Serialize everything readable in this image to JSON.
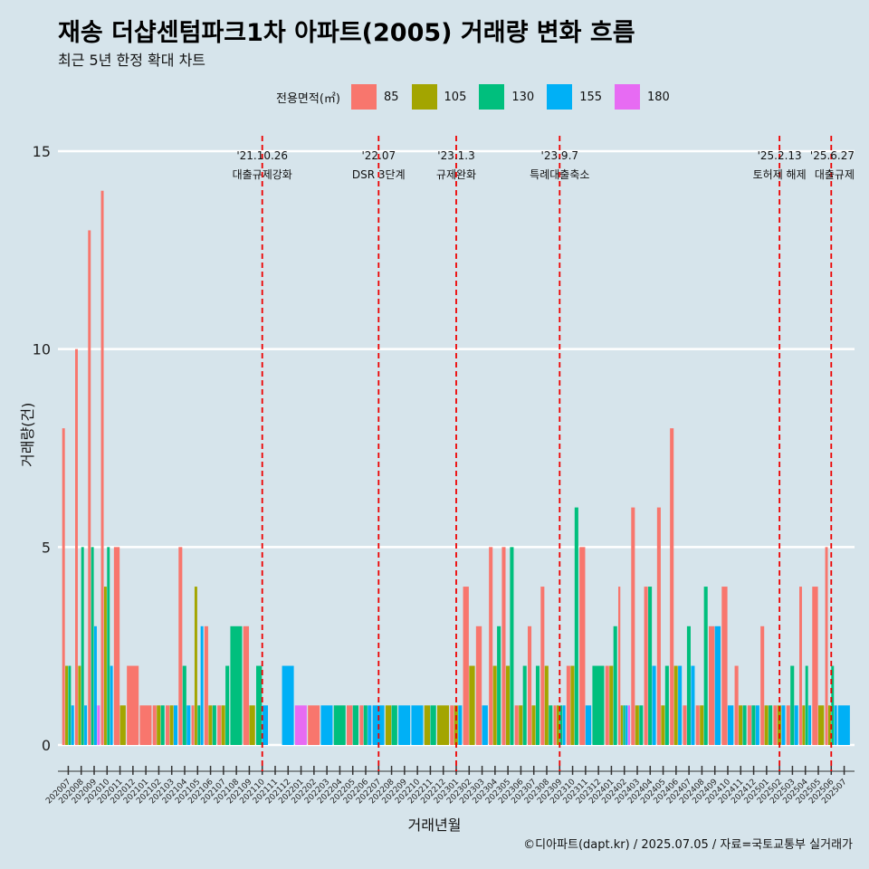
{
  "title": "재송 더샵센텀파크1차 아파트(2005) 거래량 변화 흐름",
  "subtitle": "최근 5년 한정 확대 차트",
  "legend_title": "전용면적(㎡)",
  "xlabel": "거래년월",
  "ylabel": "거래량(건)",
  "caption": "©디아파트(dapt.kr) / 2025.07.05 / 자료=국토교통부 실거래가",
  "colors": {
    "85": "#f8766d",
    "105": "#a3a500",
    "130": "#00bf7d",
    "155": "#00b0f6",
    "180": "#e76bf3",
    "background": "#d6e4eb",
    "event_line": "#ee0000"
  },
  "chart_data": {
    "type": "bar",
    "title": "재송 더샵센텀파크1차 아파트(2005) 거래량 변화 흐름",
    "subtitle": "최근 5년 한정 확대 차트",
    "xlabel": "거래년월",
    "ylabel": "거래량(건)",
    "ylim": [
      0,
      15
    ],
    "yticks": [
      0,
      5,
      10,
      15
    ],
    "grid": true,
    "legend_position": "top",
    "categories": [
      "202007",
      "202008",
      "202009",
      "202010",
      "202011",
      "202012",
      "202101",
      "202102",
      "202103",
      "202104",
      "202105",
      "202106",
      "202107",
      "202108",
      "202109",
      "202110",
      "202111",
      "202112",
      "202201",
      "202202",
      "202203",
      "202204",
      "202205",
      "202206",
      "202207",
      "202208",
      "202209",
      "202210",
      "202211",
      "202212",
      "202301",
      "202302",
      "202303",
      "202304",
      "202305",
      "202306",
      "202307",
      "202308",
      "202309",
      "202310",
      "202311",
      "202312",
      "202401",
      "202402",
      "202403",
      "202404",
      "202405",
      "202406",
      "202407",
      "202408",
      "202409",
      "202410",
      "202411",
      "202412",
      "202501",
      "202502",
      "202503",
      "202504",
      "202505",
      "202506",
      "202507"
    ],
    "tick_labels": [
      "202007",
      "202008",
      "202009",
      "202010",
      "202011",
      "202012",
      "202101",
      "202102",
      "202103",
      "202104",
      "202105",
      "202106",
      "202107",
      "202108",
      "202109",
      "202110",
      "202111",
      "202112",
      "202201",
      "202202",
      "202203",
      "202204",
      "202205",
      "202206",
      "202207",
      "202208",
      "202209",
      "202210",
      "202211",
      "202212",
      "202301",
      "202302",
      "202303",
      "202304",
      "202305",
      "202306",
      "202307",
      "202308",
      "202309",
      "202310",
      "202311",
      "202312",
      "202401",
      "202402",
      "202403",
      "202404",
      "202405",
      "202406",
      "202407",
      "202408",
      "202409",
      "202410",
      "202411",
      "202412",
      "202501",
      "202502",
      "202503",
      "202504",
      "202505",
      "202506",
      "202507"
    ],
    "series": [
      {
        "name": "85",
        "values": [
          8,
          10,
          13,
          14,
          5,
          2,
          1,
          1,
          1,
          5,
          1,
          3,
          1,
          0,
          3,
          0,
          0,
          0,
          0,
          1,
          0,
          0,
          1,
          1,
          0,
          0,
          0,
          0,
          0,
          0,
          1,
          4,
          3,
          5,
          5,
          1,
          3,
          4,
          1,
          2,
          5,
          0,
          2,
          4,
          6,
          4,
          6,
          8,
          1,
          1,
          3,
          4,
          2,
          1,
          3,
          1,
          1,
          4,
          4,
          5,
          0
        ]
      },
      {
        "name": "105",
        "values": [
          2,
          2,
          0,
          4,
          1,
          0,
          0,
          1,
          1,
          0,
          4,
          1,
          1,
          0,
          1,
          0,
          0,
          0,
          0,
          0,
          0,
          0,
          0,
          0,
          0,
          1,
          0,
          0,
          1,
          1,
          1,
          2,
          0,
          2,
          2,
          1,
          1,
          2,
          1,
          2,
          0,
          0,
          2,
          1,
          1,
          0,
          1,
          2,
          0,
          1,
          0,
          0,
          1,
          0,
          1,
          1,
          0,
          1,
          1,
          1,
          0
        ]
      },
      {
        "name": "130",
        "values": [
          2,
          5,
          5,
          5,
          0,
          0,
          0,
          1,
          0,
          2,
          1,
          1,
          2,
          3,
          0,
          2,
          0,
          0,
          0,
          0,
          0,
          1,
          1,
          1,
          0,
          1,
          0,
          0,
          1,
          0,
          0,
          0,
          0,
          3,
          5,
          2,
          2,
          1,
          1,
          6,
          0,
          2,
          3,
          1,
          1,
          4,
          2,
          0,
          3,
          4,
          0,
          0,
          1,
          1,
          1,
          0,
          2,
          2,
          0,
          2,
          0
        ]
      },
      {
        "name": "155",
        "values": [
          1,
          1,
          3,
          2,
          0,
          0,
          0,
          0,
          1,
          1,
          3,
          0,
          0,
          0,
          0,
          1,
          0,
          2,
          0,
          0,
          1,
          0,
          0,
          1,
          1,
          0,
          1,
          1,
          0,
          0,
          1,
          0,
          1,
          0,
          0,
          0,
          0,
          0,
          1,
          0,
          1,
          0,
          0,
          1,
          0,
          2,
          0,
          2,
          2,
          0,
          3,
          1,
          0,
          1,
          0,
          1,
          1,
          1,
          0,
          1,
          1
        ]
      },
      {
        "name": "180",
        "values": [
          0,
          0,
          1,
          0,
          0,
          0,
          0,
          0,
          0,
          0,
          0,
          0,
          0,
          0,
          0,
          0,
          0,
          0,
          1,
          0,
          0,
          0,
          0,
          0,
          0,
          0,
          0,
          0,
          0,
          0,
          0,
          0,
          0,
          0,
          0,
          0,
          0,
          0,
          0,
          0,
          0,
          0,
          0,
          1,
          0,
          0,
          0,
          0,
          0,
          0,
          0,
          0,
          0,
          0,
          0,
          0,
          0,
          0,
          0,
          0,
          0
        ]
      }
    ],
    "annotations": [
      {
        "month": "202110",
        "date": "'21.10.26",
        "label": "대출규제강화"
      },
      {
        "month": "202207",
        "date": "'22.07",
        "label": "DSR 3단계"
      },
      {
        "month": "202301",
        "date": "'23.1.3",
        "label": "규제완화"
      },
      {
        "month": "202309",
        "date": "'23.9.7",
        "label": "특례대출축소"
      },
      {
        "month": "202502",
        "date": "'25.2.13",
        "label": "토허제 해제"
      },
      {
        "month": "202506",
        "date": "'25.6.27",
        "label": "대출규제"
      }
    ]
  }
}
